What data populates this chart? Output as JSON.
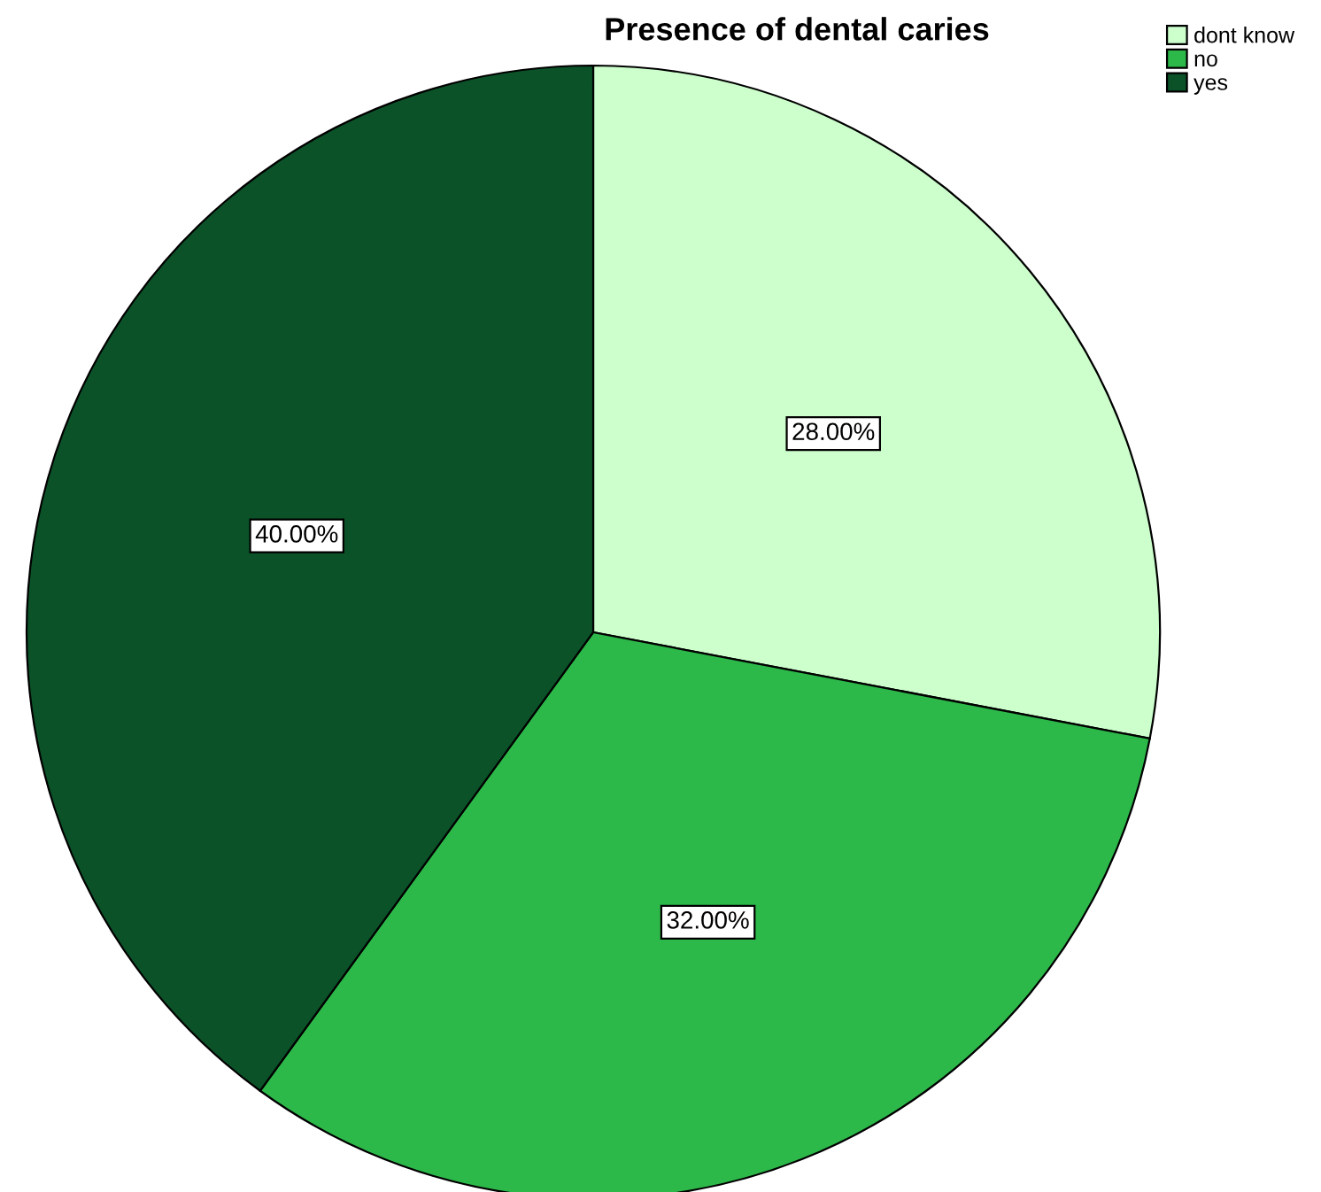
{
  "chart_data": {
    "type": "pie",
    "title": "Presence of dental caries",
    "categories": [
      "dont know",
      "no",
      "yes"
    ],
    "values": [
      28,
      32,
      40
    ],
    "colors": [
      "#ccffcc",
      "#2db84a",
      "#0b5229"
    ],
    "value_labels": [
      "28.00%",
      "32.00%",
      "40.00%"
    ],
    "legend": "top right"
  }
}
